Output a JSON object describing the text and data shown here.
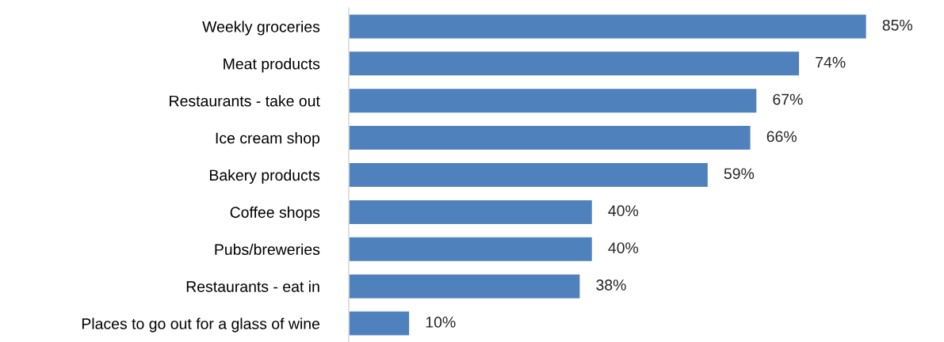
{
  "chart_data": {
    "type": "bar",
    "orientation": "horizontal",
    "categories": [
      "Weekly groceries",
      "Meat products",
      "Restaurants - take out",
      "Ice cream shop",
      "Bakery products",
      "Coffee shops",
      "Pubs/breweries",
      "Restaurants - eat in",
      "Places to go out for a glass of wine"
    ],
    "values": [
      85,
      74,
      67,
      66,
      59,
      40,
      40,
      38,
      10
    ],
    "value_labels": [
      "85%",
      "74%",
      "67%",
      "66%",
      "59%",
      "40%",
      "40%",
      "38%",
      "10%"
    ],
    "color": "#4f81bd",
    "tick_labels": "y"
  }
}
